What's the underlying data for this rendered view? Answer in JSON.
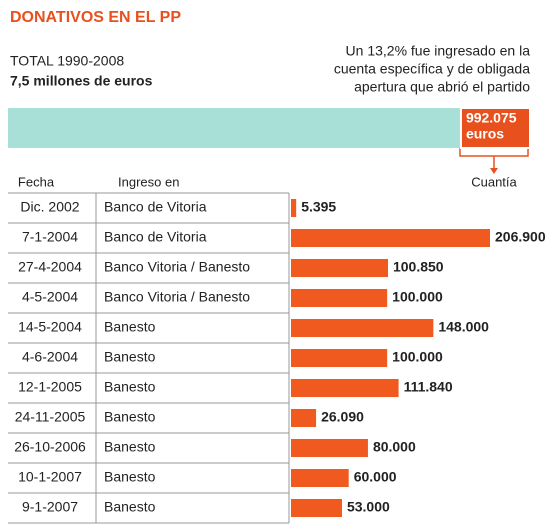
{
  "title": "DONATIVOS EN EL PP",
  "total_period": "TOTAL 1990-2008",
  "total": {
    "value": 7500000,
    "label": "7,5 millones de euros"
  },
  "note": [
    "Un 13,2%  fue ingresado en la",
    "cuenta específica y de obligada",
    "apertura que abrió el partido"
  ],
  "part": {
    "value": 992075,
    "label": "992.075",
    "unit": "euros"
  },
  "headers": [
    "Fecha",
    "Ingreso en",
    "Cuantía"
  ],
  "chart_data": {
    "type": "bar",
    "color": "#f05a1e",
    "categories": [
      "Dic. 2002",
      "7-1-2004",
      "27-4-2004",
      "4-5-2004",
      "14-5-2004",
      "4-6-2004",
      "12-1-2005",
      "24-11-2005",
      "26-10-2006",
      "10-1-2007",
      "9-1-2007"
    ],
    "ingreso": [
      "Banco de Vitoria",
      "Banco de Vitoria",
      "Banco Vitoria / Banesto",
      "Banco Vitoria / Banesto",
      "Banesto",
      "Banesto",
      "Banesto",
      "Banesto",
      "Banesto",
      "Banesto",
      "Banesto"
    ],
    "values": [
      5395,
      206900,
      100850,
      100000,
      148000,
      100000,
      111840,
      26090,
      80000,
      60000,
      53000
    ],
    "value_labels": [
      "5.395",
      "206.900",
      "100.850",
      "100.000",
      "148.000",
      "100.000",
      "111.840",
      "26.090",
      "80.000",
      "60.000",
      "53.000"
    ]
  }
}
